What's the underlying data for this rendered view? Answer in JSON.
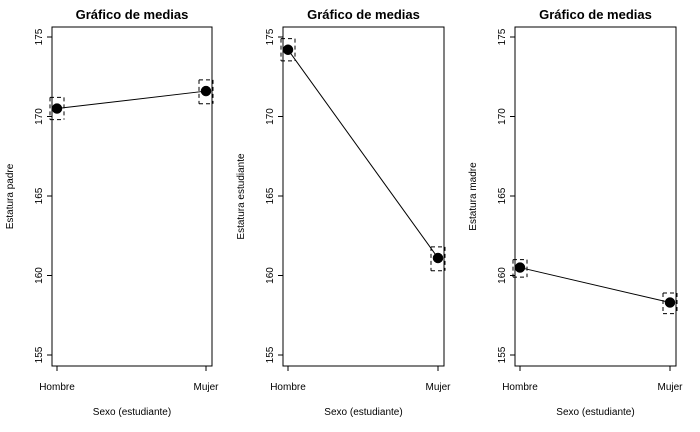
{
  "chart_data": [
    {
      "type": "line",
      "title": "Gráfico de medias",
      "xlabel": "Sexo (estudiante)",
      "ylabel": "Estatura padre",
      "categories": [
        "Hombre",
        "Mujer"
      ],
      "values": [
        170.5,
        171.6
      ],
      "error": [
        {
          "low": 169.8,
          "high": 171.2
        },
        {
          "low": 170.8,
          "high": 172.3
        }
      ],
      "ylim": [
        155,
        175
      ],
      "yticks": [
        "155",
        "160",
        "165",
        "170",
        "175"
      ],
      "grid": false
    },
    {
      "type": "line",
      "title": "Gráfico de medias",
      "xlabel": "Sexo (estudiante)",
      "ylabel": "Estatura estudiante",
      "categories": [
        "Hombre",
        "Mujer"
      ],
      "values": [
        174.2,
        161.1
      ],
      "error": [
        {
          "low": 173.5,
          "high": 174.9
        },
        {
          "low": 160.3,
          "high": 161.8
        }
      ],
      "ylim": [
        155,
        175
      ],
      "yticks": [
        "155",
        "160",
        "165",
        "170",
        "175"
      ],
      "grid": false
    },
    {
      "type": "line",
      "title": "Gráfico de medias",
      "xlabel": "Sexo (estudiante)",
      "ylabel": "Estatura madre",
      "categories": [
        "Hombre",
        "Mujer"
      ],
      "values": [
        160.5,
        158.3
      ],
      "error": [
        {
          "low": 159.9,
          "high": 161.0
        },
        {
          "low": 157.6,
          "high": 158.9
        }
      ],
      "ylim": [
        155,
        175
      ],
      "yticks": [
        "155",
        "160",
        "165",
        "170",
        "175"
      ],
      "grid": false
    }
  ]
}
